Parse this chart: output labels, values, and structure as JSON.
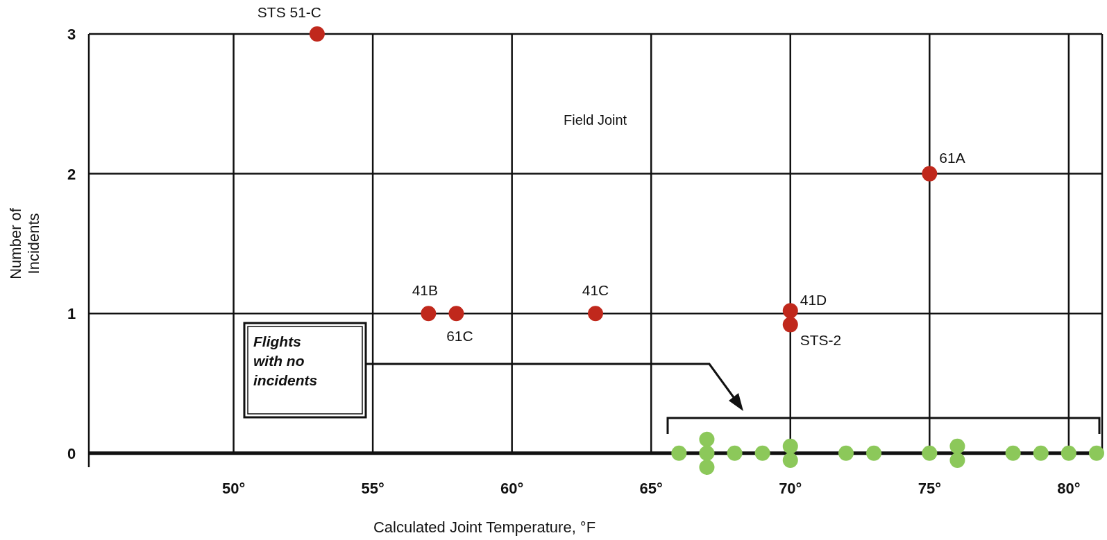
{
  "chart_data": {
    "type": "scatter",
    "xlabel": "Calculated Joint Temperature, °F",
    "ylabel": "Number of Incidents",
    "xlim": [
      44.8,
      81.2
    ],
    "ylim": [
      -0.1,
      3
    ],
    "xticks": [
      {
        "value": 50,
        "label": "50°"
      },
      {
        "value": 55,
        "label": "55°"
      },
      {
        "value": 60,
        "label": "60°"
      },
      {
        "value": 65,
        "label": "65°"
      },
      {
        "value": 70,
        "label": "70°"
      },
      {
        "value": 75,
        "label": "75°"
      },
      {
        "value": 80,
        "label": "80°"
      }
    ],
    "yticks": [
      0,
      1,
      2,
      3
    ],
    "grid": true,
    "marker": "circle",
    "series": [
      {
        "color": "#c0281c",
        "x": [
          53,
          57,
          58,
          63,
          70,
          70,
          75
        ],
        "values": [
          3,
          1,
          1,
          1,
          1.02,
          0.92,
          2
        ]
      },
      {
        "color": "#8cc85a",
        "x": [
          66,
          67,
          67,
          67,
          68,
          69,
          70,
          70,
          72,
          73,
          75,
          76,
          76,
          78,
          79,
          80,
          81
        ],
        "values": [
          0,
          0.1,
          0,
          -0.1,
          0,
          0,
          0.05,
          -0.05,
          0,
          0,
          0,
          0.05,
          -0.05,
          0,
          0,
          0,
          0
        ]
      }
    ],
    "annotations": [
      "Field Joint",
      "Flights with no incidents",
      {
        "text": "STS 51-C",
        "x": 53,
        "y": 3
      },
      {
        "text": "41B",
        "x": 57,
        "y": 1
      },
      {
        "text": "61C",
        "x": 58,
        "y": 1
      },
      {
        "text": "41C",
        "x": 63,
        "y": 1
      },
      {
        "text": "41D",
        "x": 70,
        "y": 1.02
      },
      {
        "text": "STS-2",
        "x": 70,
        "y": 0.92
      },
      {
        "text": "61A",
        "x": 75,
        "y": 2
      }
    ]
  }
}
